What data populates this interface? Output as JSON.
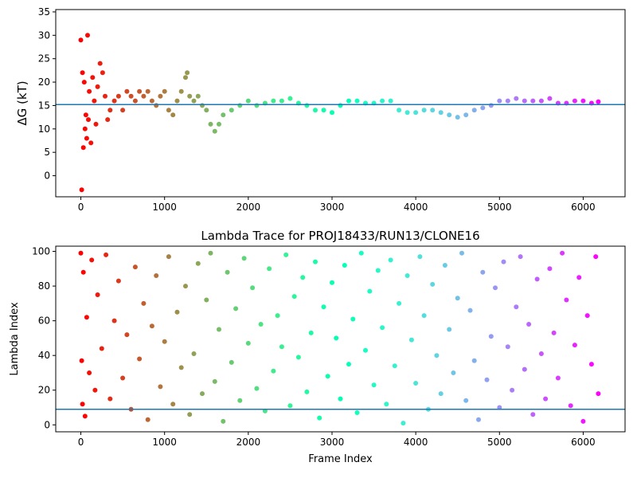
{
  "chart_data": [
    {
      "type": "scatter",
      "title": "",
      "xlabel": "",
      "ylabel": "ΔG (kT)",
      "xlim": [
        -300,
        6500
      ],
      "ylim": [
        -4.5,
        35.5
      ],
      "xticks": [
        0,
        1000,
        2000,
        3000,
        4000,
        5000,
        6000
      ],
      "yticks": [
        0,
        5,
        10,
        15,
        20,
        25,
        30,
        35
      ],
      "hline": 15.2,
      "hline_color": "#1f77b4",
      "colormap": "rainbow (reversed with frame index)",
      "grid": false,
      "series": [
        {
          "x": [
            0,
            10,
            20,
            30,
            40,
            50,
            60,
            70,
            80,
            90,
            100,
            120,
            140,
            160,
            180,
            200,
            230,
            260,
            290,
            320,
            350,
            400,
            450,
            500,
            550,
            600,
            650,
            700,
            750,
            800,
            850,
            900,
            950,
            1000,
            1050,
            1100,
            1150,
            1200,
            1250,
            1270,
            1300,
            1350,
            1400,
            1450,
            1500,
            1550,
            1600,
            1650,
            1700,
            1800,
            1900,
            2000,
            2100,
            2200,
            2300,
            2400,
            2500,
            2600,
            2700,
            2800,
            2900,
            3000,
            3100,
            3200,
            3300,
            3400,
            3500,
            3600,
            3700,
            3800,
            3900,
            4000,
            4100,
            4200,
            4300,
            4400,
            4500,
            4600,
            4700,
            4800,
            4900,
            5000,
            5100,
            5200,
            5300,
            5400,
            5500,
            5600,
            5700,
            5800,
            5900,
            6000,
            6100,
            6180
          ],
          "y": [
            29,
            -3,
            22,
            6,
            20,
            10,
            13,
            8,
            30,
            12,
            18,
            7,
            21,
            16,
            11,
            19,
            24,
            22,
            17,
            12,
            14,
            16,
            17,
            14,
            18,
            17,
            16,
            18,
            17,
            18,
            16,
            15,
            17,
            18,
            14,
            13,
            16,
            18,
            21,
            22,
            17,
            16,
            17,
            15,
            14,
            11,
            9.5,
            11,
            13,
            14,
            15,
            16,
            15,
            15.5,
            16,
            16,
            16.5,
            15.5,
            15,
            14,
            14,
            13.5,
            15,
            16,
            16,
            15.5,
            15.5,
            16,
            16,
            14,
            13.5,
            13.5,
            14,
            14,
            13.5,
            13,
            12.5,
            13,
            14,
            14.5,
            15,
            16,
            16,
            16.5,
            16,
            16,
            16,
            16.5,
            15.5,
            15.5,
            16,
            16,
            15.5,
            15.8
          ]
        }
      ]
    },
    {
      "type": "scatter",
      "title": "Lambda Trace for PROJ18433/RUN13/CLONE16",
      "xlabel": "Frame Index",
      "ylabel": "Lambda Index",
      "xlim": [
        -300,
        6500
      ],
      "ylim": [
        -4,
        103
      ],
      "xticks": [
        0,
        1000,
        2000,
        3000,
        4000,
        5000,
        6000
      ],
      "yticks": [
        0,
        20,
        40,
        60,
        80,
        100
      ],
      "hline": 9,
      "hline_color": "#1f77b4",
      "colormap": "rainbow (reversed with frame index)",
      "grid": false,
      "series": [
        {
          "x": [
            0,
            10,
            20,
            30,
            50,
            70,
            100,
            130,
            170,
            200,
            250,
            300,
            350,
            400,
            450,
            500,
            550,
            600,
            650,
            700,
            750,
            800,
            850,
            900,
            950,
            1000,
            1050,
            1100,
            1150,
            1200,
            1250,
            1300,
            1350,
            1400,
            1450,
            1500,
            1550,
            1600,
            1650,
            1700,
            1750,
            1800,
            1850,
            1900,
            1950,
            2000,
            2050,
            2100,
            2150,
            2200,
            2250,
            2300,
            2350,
            2400,
            2450,
            2500,
            2550,
            2600,
            2650,
            2700,
            2750,
            2800,
            2850,
            2900,
            2950,
            3000,
            3050,
            3100,
            3150,
            3200,
            3250,
            3300,
            3350,
            3400,
            3450,
            3500,
            3550,
            3600,
            3650,
            3700,
            3750,
            3800,
            3850,
            3900,
            3950,
            4000,
            4050,
            4100,
            4150,
            4200,
            4250,
            4300,
            4350,
            4400,
            4450,
            4500,
            4550,
            4600,
            4650,
            4700,
            4750,
            4800,
            4850,
            4900,
            4950,
            5000,
            5050,
            5100,
            5150,
            5200,
            5250,
            5300,
            5350,
            5400,
            5450,
            5500,
            5550,
            5600,
            5650,
            5700,
            5750,
            5800,
            5850,
            5900,
            5950,
            6000,
            6050,
            6100,
            6150,
            6180
          ],
          "y": [
            99,
            37,
            12,
            88,
            5,
            62,
            30,
            95,
            20,
            75,
            44,
            98,
            15,
            60,
            83,
            27,
            52,
            9,
            91,
            38,
            70,
            3,
            57,
            86,
            22,
            48,
            97,
            12,
            65,
            33,
            80,
            6,
            41,
            93,
            18,
            72,
            99,
            25,
            55,
            2,
            88,
            36,
            67,
            14,
            96,
            47,
            79,
            21,
            58,
            8,
            90,
            31,
            63,
            45,
            98,
            11,
            74,
            39,
            85,
            19,
            53,
            94,
            4,
            68,
            28,
            82,
            50,
            15,
            92,
            35,
            61,
            7,
            99,
            43,
            77,
            23,
            89,
            56,
            12,
            95,
            34,
            70,
            1,
            86,
            49,
            24,
            97,
            63,
            9,
            81,
            40,
            18,
            92,
            55,
            30,
            73,
            99,
            14,
            66,
            37,
            3,
            88,
            26,
            51,
            79,
            10,
            94,
            45,
            20,
            68,
            97,
            32,
            58,
            6,
            84,
            41,
            15,
            90,
            53,
            27,
            99,
            72,
            11,
            46,
            85,
            2,
            63,
            35,
            97,
            18
          ]
        }
      ]
    }
  ]
}
